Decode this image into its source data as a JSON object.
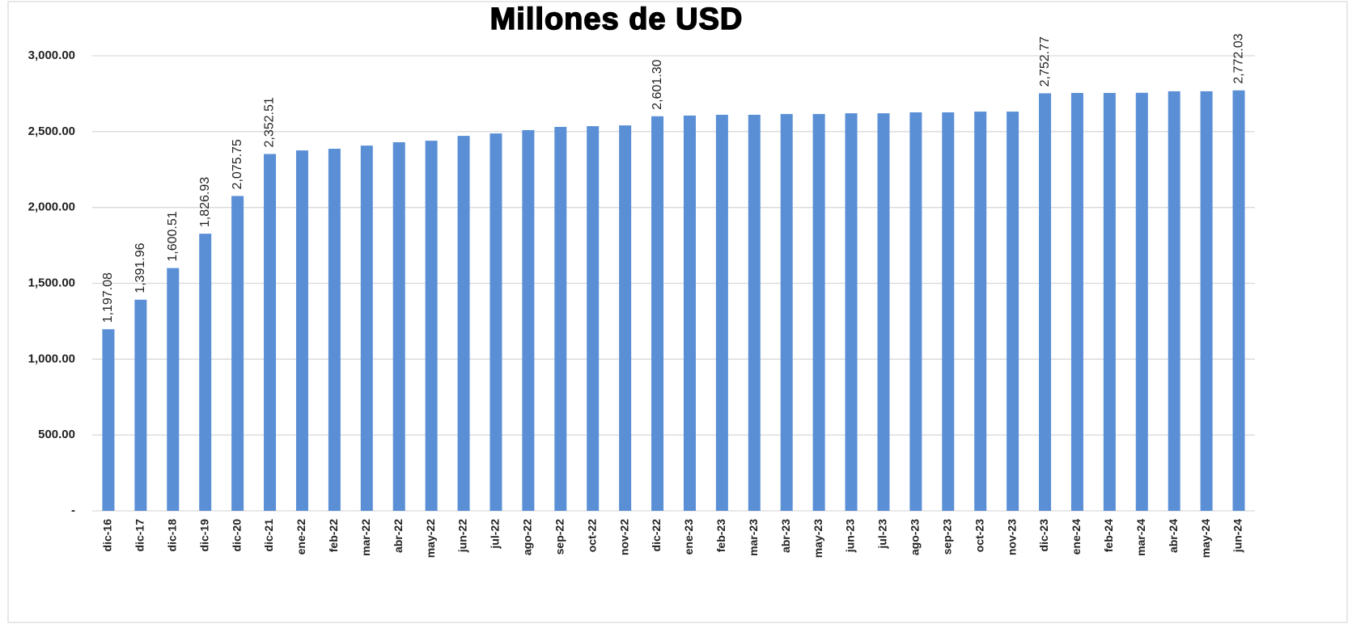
{
  "chart_data": {
    "type": "bar",
    "title": "Millones de USD",
    "categories": [
      "dic-16",
      "dic-17",
      "dic-18",
      "dic-19",
      "dic-20",
      "dic-21",
      "ene-22",
      "feb-22",
      "mar-22",
      "abr-22",
      "may-22",
      "jun-22",
      "jul-22",
      "ago-22",
      "sep-22",
      "oct-22",
      "nov-22",
      "dic-22",
      "ene-23",
      "feb-23",
      "mar-23",
      "abr-23",
      "may-23",
      "jun-23",
      "jul-23",
      "ago-23",
      "sep-23",
      "oct-23",
      "nov-23",
      "dic-23",
      "ene-24",
      "feb-24",
      "mar-24",
      "abr-24",
      "may-24",
      "jun-24"
    ],
    "values": [
      1197.08,
      1391.96,
      1600.51,
      1826.93,
      2075.75,
      2352.51,
      2376,
      2387,
      2408,
      2430,
      2440,
      2472,
      2488,
      2510,
      2531,
      2536,
      2541,
      2601.3,
      2606,
      2611,
      2611,
      2616,
      2616,
      2621,
      2621,
      2627,
      2627,
      2632,
      2632,
      2752.77,
      2755,
      2755,
      2756,
      2766,
      2766,
      2772.03
    ],
    "value_labels": [
      "1,197.08",
      "1,391.96",
      "1,600.51",
      "1,826.93",
      "2,075.75",
      "2,352.51",
      null,
      null,
      null,
      null,
      null,
      null,
      null,
      null,
      null,
      null,
      null,
      "2,601.30",
      null,
      null,
      null,
      null,
      null,
      null,
      null,
      null,
      null,
      null,
      null,
      "2,752.77",
      null,
      null,
      null,
      null,
      null,
      "2,772.03"
    ],
    "color": "#5a8fd6",
    "ylim": [
      0,
      3000
    ],
    "yticks": [
      {
        "value": 0,
        "label": "-"
      },
      {
        "value": 500,
        "label": "500.00"
      },
      {
        "value": 1000,
        "label": "1,000.00"
      },
      {
        "value": 1500,
        "label": "1,500.00"
      },
      {
        "value": 2000,
        "label": "2,000.00"
      },
      {
        "value": 2500,
        "label": "2,500.00"
      },
      {
        "value": 3000,
        "label": "3,000.00"
      }
    ],
    "grid": true
  }
}
